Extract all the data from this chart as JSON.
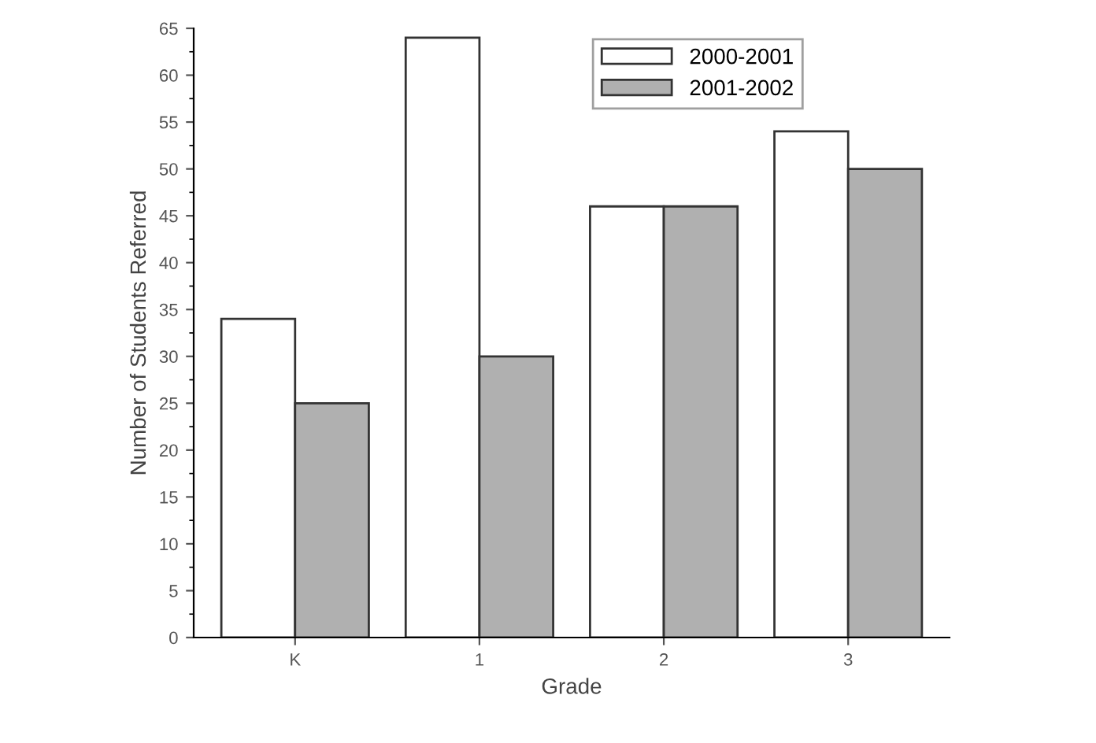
{
  "chart_data": {
    "type": "bar",
    "xlabel": "Grade",
    "ylabel": "Number of Students Referred",
    "categories": [
      "K",
      "1",
      "2",
      "3"
    ],
    "series": [
      {
        "name": "2000-2001",
        "color": "#ffffff",
        "values": [
          34,
          64,
          46,
          54
        ]
      },
      {
        "name": "2001-2002",
        "color": "#b0b0b0",
        "values": [
          25,
          30,
          46,
          50
        ]
      }
    ],
    "ylim": [
      0,
      65
    ],
    "yticks": [
      0,
      5,
      10,
      15,
      20,
      25,
      30,
      35,
      40,
      45,
      50,
      55,
      60,
      65
    ],
    "grid": false,
    "legend": "top right"
  }
}
